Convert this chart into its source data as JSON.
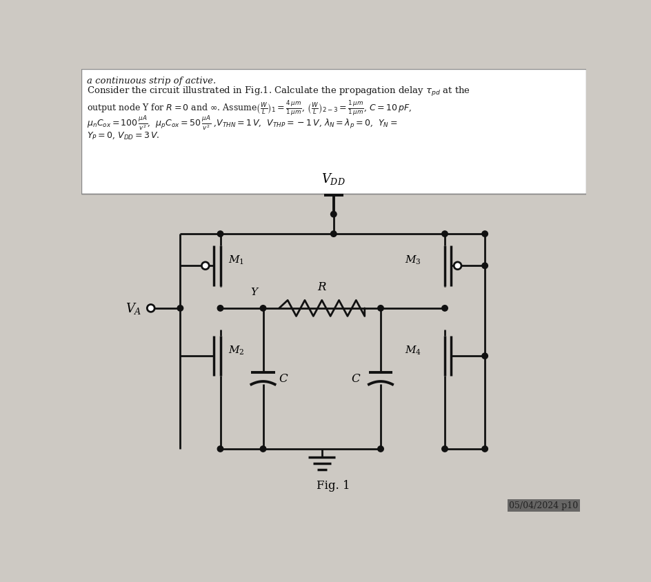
{
  "bg_color": "#cdc9c3",
  "text_bg": "#ffffff",
  "text_color": "#1a1a1a",
  "line_color": "#111111",
  "top_text_line1": "a continuous strip of active.",
  "top_text_line2": "Consider the circuit illustrated in Fig.1. Calculate the propagation delay $\\tau_{pd}$ at the",
  "top_text_line3": "output node Y for $R = 0$ and $\\infty$. Assume$\\left(\\frac{W}{L}\\right)_1 = \\frac{4\\,\\mu m}{1\\,\\mu m}$, $\\left(\\frac{W}{L}\\right)_{2-3} = \\frac{1\\,\\mu m}{1\\,\\mu m}$, $C = 10\\,pF$,",
  "top_text_line4": "$\\mu_n C_{ox} = 100\\,\\frac{\\mu A}{v^2}$,  $\\mu_p C_{ox} = 50\\,\\frac{\\mu A}{v^2}$ ,$V_{THN} = 1\\,V$,  $V_{THP} = -1\\,V$, $\\lambda_N = \\lambda_p = 0$,  $Y_N =$",
  "top_text_line5": "$Y_P = 0$, $V_{DD} = 3\\,V$.",
  "fig_label": "Fig. 1",
  "date_text": "05/04/2024 p10",
  "vdd_label": "$V_{DD}$",
  "va_label": "$V_A$",
  "y_label": "Y",
  "r_label": "R",
  "m1_label": "$M_1$",
  "m2_label": "$M_2$",
  "m3_label": "$M_3$",
  "m4_label": "$M_4$",
  "c1_label": "C",
  "c2_label": "C"
}
